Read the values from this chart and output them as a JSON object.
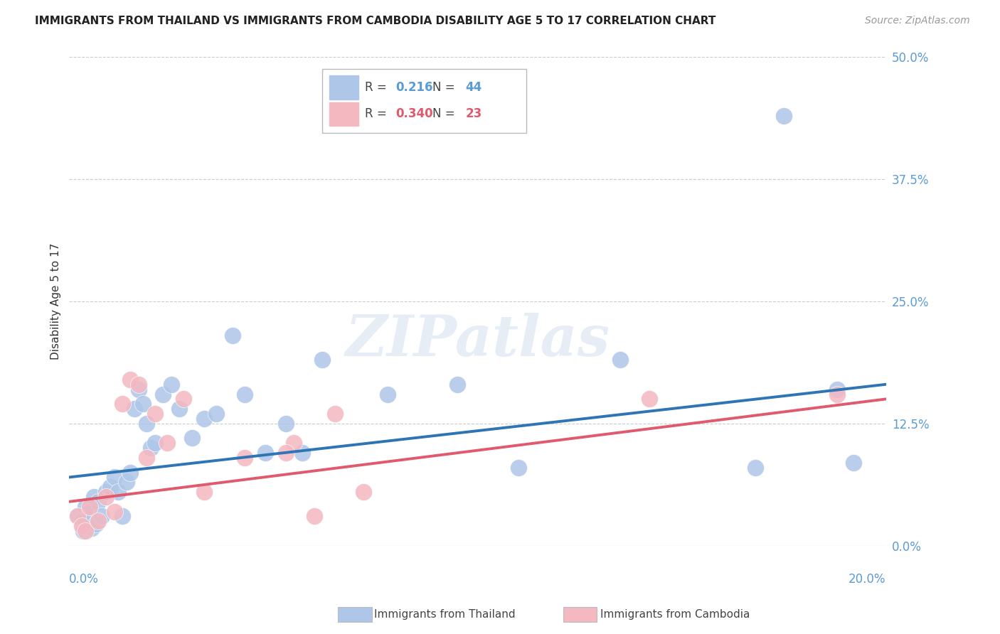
{
  "title": "IMMIGRANTS FROM THAILAND VS IMMIGRANTS FROM CAMBODIA DISABILITY AGE 5 TO 17 CORRELATION CHART",
  "source": "Source: ZipAtlas.com",
  "ylabel": "Disability Age 5 to 17",
  "ytick_values": [
    0.0,
    12.5,
    25.0,
    37.5,
    50.0
  ],
  "xlim": [
    0.0,
    20.0
  ],
  "ylim": [
    0.0,
    50.0
  ],
  "title_color": "#222222",
  "axis_color": "#5b9bd5",
  "grid_color": "#cccccc",
  "thailand_color": "#aec6e8",
  "cambodia_color": "#f4b8c1",
  "thailand_line_color": "#2e75b6",
  "cambodia_line_color": "#e05a6e",
  "thailand_R": "0.216",
  "thailand_N": "44",
  "cambodia_R": "0.340",
  "cambodia_N": "23",
  "thailand_scatter_x": [
    0.2,
    0.3,
    0.35,
    0.4,
    0.45,
    0.5,
    0.55,
    0.6,
    0.65,
    0.7,
    0.8,
    0.9,
    1.0,
    1.1,
    1.2,
    1.3,
    1.4,
    1.5,
    1.6,
    1.7,
    1.8,
    1.9,
    2.0,
    2.1,
    2.3,
    2.5,
    2.7,
    3.0,
    3.3,
    3.6,
    4.0,
    4.3,
    4.8,
    5.3,
    5.7,
    6.2,
    7.8,
    9.5,
    11.0,
    13.5,
    16.8,
    17.5,
    18.8,
    19.2
  ],
  "thailand_scatter_y": [
    3.0,
    2.5,
    1.5,
    4.0,
    2.0,
    3.5,
    1.8,
    5.0,
    2.2,
    4.5,
    3.0,
    5.5,
    6.0,
    7.0,
    5.5,
    3.0,
    6.5,
    7.5,
    14.0,
    16.0,
    14.5,
    12.5,
    10.0,
    10.5,
    15.5,
    16.5,
    14.0,
    11.0,
    13.0,
    13.5,
    21.5,
    15.5,
    9.5,
    12.5,
    9.5,
    19.0,
    15.5,
    16.5,
    8.0,
    19.0,
    8.0,
    44.0,
    16.0,
    8.5
  ],
  "cambodia_scatter_x": [
    0.2,
    0.3,
    0.4,
    0.5,
    0.7,
    0.9,
    1.1,
    1.3,
    1.5,
    1.7,
    1.9,
    2.1,
    2.4,
    2.8,
    3.3,
    4.3,
    5.5,
    6.0,
    6.5,
    7.2,
    5.3,
    14.2,
    18.8
  ],
  "cambodia_scatter_y": [
    3.0,
    2.0,
    1.5,
    4.0,
    2.5,
    5.0,
    3.5,
    14.5,
    17.0,
    16.5,
    9.0,
    13.5,
    10.5,
    15.0,
    5.5,
    9.0,
    10.5,
    3.0,
    13.5,
    5.5,
    9.5,
    15.0,
    15.5
  ],
  "thailand_trend_y0": 7.0,
  "thailand_trend_y1": 16.5,
  "cambodia_trend_y0": 4.5,
  "cambodia_trend_y1": 15.0
}
